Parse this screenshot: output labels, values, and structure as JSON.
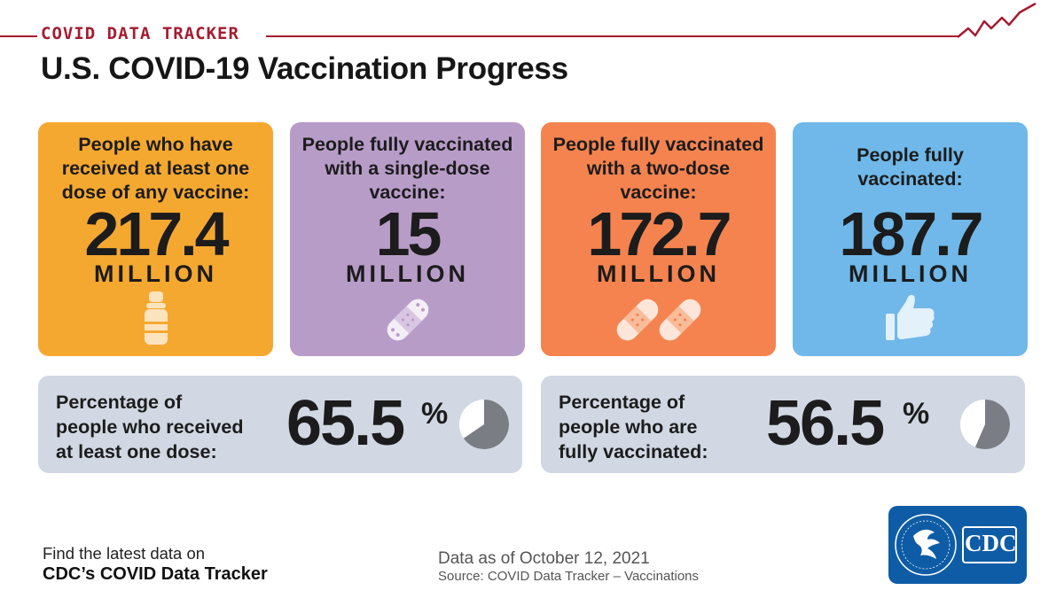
{
  "header": {
    "tracker_label": "COVID DATA TRACKER",
    "title": "U.S. COVID-19 Vaccination Progress"
  },
  "cards": [
    {
      "label": "People who have received at least one dose of any vaccine:",
      "value": "217.4",
      "unit": "MILLION",
      "color": "#f5a830",
      "icon": "vaccine-vial-icon"
    },
    {
      "label": "People fully vaccinated with a single-dose vaccine:",
      "value": "15",
      "unit": "MILLION",
      "color": "#b89cc8",
      "icon": "bandage-icon"
    },
    {
      "label": "People fully vaccinated with a two-dose vaccine:",
      "value": "172.7",
      "unit": "MILLION",
      "color": "#f5834f",
      "icon": "two-bandages-icon"
    },
    {
      "label": "People fully vaccinated:",
      "value": "187.7",
      "unit": "MILLION",
      "color": "#6fb8e9",
      "icon": "thumbs-up-icon"
    }
  ],
  "percentages": [
    {
      "label_lines": [
        "Percentage of",
        "people who received",
        "at least one dose:"
      ],
      "value": "65.5",
      "sign": "%",
      "fraction": 0.655
    },
    {
      "label_lines": [
        "Percentage of",
        "people who are",
        "fully vaccinated:"
      ],
      "value": "56.5",
      "sign": "%",
      "fraction": 0.565
    }
  ],
  "footer": {
    "line1": "Find the latest data on",
    "line2": "CDC’s COVID Data Tracker",
    "as_of": "Data as of October 12, 2021",
    "source": "Source: COVID Data Tracker – Vaccinations"
  },
  "logo": {
    "text": "CDC"
  },
  "colors": {
    "accent_red": "#a51c30",
    "panel_gray": "#d1d8e4",
    "pie_fill": "#7a7d83",
    "logo_blue": "#0f5ca6"
  }
}
